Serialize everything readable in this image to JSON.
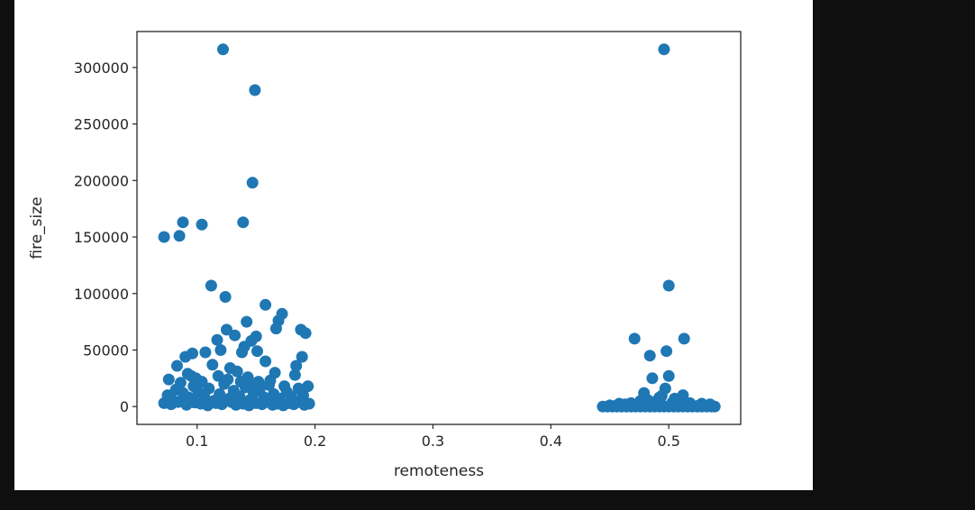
{
  "chart_data": {
    "type": "scatter",
    "title": "",
    "xlabel": "remoteness",
    "ylabel": "fire_size",
    "xlim": [
      0.049,
      0.561
    ],
    "ylim": [
      -15800,
      331800
    ],
    "xticks": [
      {
        "value": 0.1,
        "label": "0.1"
      },
      {
        "value": 0.2,
        "label": "0.2"
      },
      {
        "value": 0.3,
        "label": "0.3"
      },
      {
        "value": 0.4,
        "label": "0.4"
      },
      {
        "value": 0.5,
        "label": "0.5"
      }
    ],
    "yticks": [
      {
        "value": 0,
        "label": "0"
      },
      {
        "value": 50000,
        "label": "50000"
      },
      {
        "value": 100000,
        "label": "100000"
      },
      {
        "value": 150000,
        "label": "150000"
      },
      {
        "value": 200000,
        "label": "200000"
      },
      {
        "value": 250000,
        "label": "250000"
      },
      {
        "value": 300000,
        "label": "300000"
      }
    ],
    "grid": false,
    "legend": "none",
    "marker_color": "#1f77b4",
    "points": [
      [
        0.122,
        316000
      ],
      [
        0.149,
        280000
      ],
      [
        0.147,
        198000
      ],
      [
        0.088,
        163000
      ],
      [
        0.139,
        163000
      ],
      [
        0.104,
        161000
      ],
      [
        0.085,
        151000
      ],
      [
        0.072,
        150000
      ],
      [
        0.112,
        107000
      ],
      [
        0.124,
        97000
      ],
      [
        0.158,
        90000
      ],
      [
        0.172,
        82000
      ],
      [
        0.169,
        76000
      ],
      [
        0.142,
        75000
      ],
      [
        0.167,
        69000
      ],
      [
        0.188,
        68000
      ],
      [
        0.192,
        65000
      ],
      [
        0.125,
        68000
      ],
      [
        0.132,
        63000
      ],
      [
        0.15,
        62000
      ],
      [
        0.117,
        59000
      ],
      [
        0.146,
        58000
      ],
      [
        0.14,
        53000
      ],
      [
        0.151,
        49000
      ],
      [
        0.189,
        44000
      ],
      [
        0.12,
        50000
      ],
      [
        0.138,
        48000
      ],
      [
        0.096,
        47000
      ],
      [
        0.107,
        48000
      ],
      [
        0.09,
        44000
      ],
      [
        0.083,
        36000
      ],
      [
        0.113,
        37000
      ],
      [
        0.128,
        34000
      ],
      [
        0.158,
        40000
      ],
      [
        0.184,
        36000
      ],
      [
        0.183,
        28000
      ],
      [
        0.166,
        30000
      ],
      [
        0.092,
        29000
      ],
      [
        0.076,
        24000
      ],
      [
        0.099,
        25000
      ],
      [
        0.143,
        26000
      ],
      [
        0.134,
        31000
      ],
      [
        0.104,
        22000
      ],
      [
        0.118,
        27000
      ],
      [
        0.152,
        22000
      ],
      [
        0.174,
        18000
      ],
      [
        0.194,
        18000
      ],
      [
        0.075,
        10000
      ],
      [
        0.079,
        6000
      ],
      [
        0.082,
        15000
      ],
      [
        0.088,
        12000
      ],
      [
        0.093,
        8000
      ],
      [
        0.097,
        18000
      ],
      [
        0.101,
        13000
      ],
      [
        0.106,
        9000
      ],
      [
        0.11,
        16000
      ],
      [
        0.114,
        5000
      ],
      [
        0.119,
        11000
      ],
      [
        0.123,
        20000
      ],
      [
        0.127,
        7000
      ],
      [
        0.131,
        14000
      ],
      [
        0.136,
        9000
      ],
      [
        0.141,
        17000
      ],
      [
        0.145,
        6000
      ],
      [
        0.148,
        12000
      ],
      [
        0.153,
        15000
      ],
      [
        0.157,
        8000
      ],
      [
        0.161,
        19000
      ],
      [
        0.165,
        11000
      ],
      [
        0.17,
        7000
      ],
      [
        0.176,
        13000
      ],
      [
        0.18,
        9000
      ],
      [
        0.186,
        16000
      ],
      [
        0.19,
        10000
      ],
      [
        0.072,
        3000
      ],
      [
        0.078,
        2000
      ],
      [
        0.084,
        4000
      ],
      [
        0.091,
        1500
      ],
      [
        0.098,
        3500
      ],
      [
        0.103,
        2500
      ],
      [
        0.109,
        1000
      ],
      [
        0.116,
        3000
      ],
      [
        0.121,
        2000
      ],
      [
        0.129,
        4000
      ],
      [
        0.133,
        1500
      ],
      [
        0.139,
        2500
      ],
      [
        0.144,
        1000
      ],
      [
        0.15,
        3000
      ],
      [
        0.155,
        2000
      ],
      [
        0.16,
        4000
      ],
      [
        0.164,
        1500
      ],
      [
        0.168,
        2500
      ],
      [
        0.173,
        1000
      ],
      [
        0.178,
        3000
      ],
      [
        0.182,
        2000
      ],
      [
        0.187,
        4000
      ],
      [
        0.191,
        1500
      ],
      [
        0.195,
        2500
      ],
      [
        0.086,
        21000
      ],
      [
        0.126,
        24000
      ],
      [
        0.137,
        22000
      ],
      [
        0.162,
        23000
      ],
      [
        0.095,
        27000
      ],
      [
        0.147,
        20000
      ],
      [
        0.496,
        316000
      ],
      [
        0.5,
        107000
      ],
      [
        0.471,
        60000
      ],
      [
        0.513,
        60000
      ],
      [
        0.498,
        49000
      ],
      [
        0.484,
        45000
      ],
      [
        0.5,
        27000
      ],
      [
        0.486,
        25000
      ],
      [
        0.497,
        16000
      ],
      [
        0.479,
        12000
      ],
      [
        0.512,
        10000
      ],
      [
        0.492,
        8000
      ],
      [
        0.505,
        7000
      ],
      [
        0.476,
        5000
      ],
      [
        0.487,
        4000
      ],
      [
        0.503,
        3500
      ],
      [
        0.468,
        3000
      ],
      [
        0.518,
        3000
      ],
      [
        0.528,
        2500
      ],
      [
        0.535,
        2000
      ],
      [
        0.458,
        2500
      ],
      [
        0.463,
        2000
      ],
      [
        0.444,
        0
      ],
      [
        0.448,
        0
      ],
      [
        0.452,
        0
      ],
      [
        0.456,
        0
      ],
      [
        0.46,
        0
      ],
      [
        0.464,
        0
      ],
      [
        0.468,
        0
      ],
      [
        0.472,
        0
      ],
      [
        0.476,
        0
      ],
      [
        0.48,
        0
      ],
      [
        0.484,
        0
      ],
      [
        0.488,
        0
      ],
      [
        0.492,
        0
      ],
      [
        0.496,
        0
      ],
      [
        0.5,
        0
      ],
      [
        0.504,
        0
      ],
      [
        0.508,
        0
      ],
      [
        0.512,
        0
      ],
      [
        0.516,
        0
      ],
      [
        0.52,
        0
      ],
      [
        0.524,
        0
      ],
      [
        0.528,
        0
      ],
      [
        0.532,
        0
      ],
      [
        0.536,
        0
      ],
      [
        0.539,
        0
      ],
      [
        0.45,
        1000
      ],
      [
        0.47,
        1200
      ],
      [
        0.49,
        1500
      ],
      [
        0.51,
        1000
      ],
      [
        0.53,
        1200
      ],
      [
        0.455,
        600
      ],
      [
        0.475,
        800
      ],
      [
        0.495,
        900
      ],
      [
        0.515,
        700
      ],
      [
        0.525,
        800
      ],
      [
        0.482,
        6000
      ],
      [
        0.494,
        9500
      ],
      [
        0.507,
        5000
      ]
    ]
  }
}
